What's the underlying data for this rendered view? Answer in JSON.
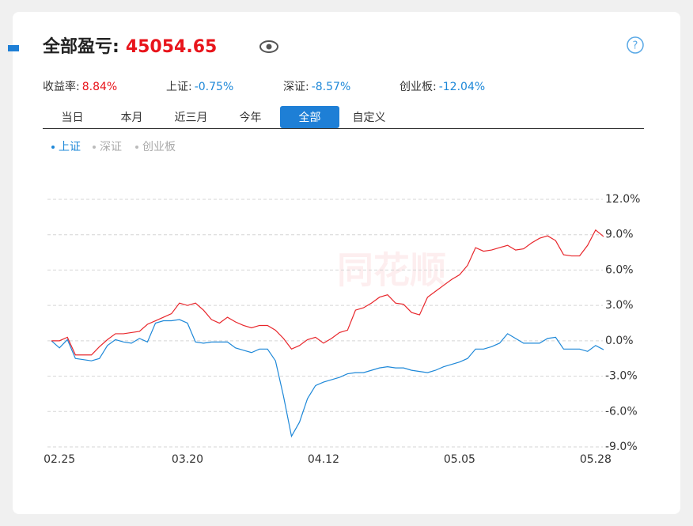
{
  "header": {
    "title": "全部盈亏:",
    "value": "45054.65"
  },
  "stats": [
    {
      "label": "收益率:",
      "value": "8.84%",
      "color": "#e8141b"
    },
    {
      "label": "上证:",
      "value": "-0.75%",
      "color": "#1e88d8"
    },
    {
      "label": "深证:",
      "value": "-8.57%",
      "color": "#1e88d8"
    },
    {
      "label": "创业板:",
      "value": "-12.04%",
      "color": "#1e88d8"
    }
  ],
  "tabs": [
    "当日",
    "本月",
    "近三月",
    "今年",
    "全部",
    "自定义"
  ],
  "active_tab": 4,
  "benchmark_toggles": [
    "深证",
    "创业板"
  ],
  "watermark": "同花顺",
  "chart_data": {
    "type": "line",
    "categories": [
      null,
      "02.25",
      null,
      null,
      null,
      null,
      null,
      null,
      null,
      null,
      null,
      null,
      null,
      null,
      null,
      null,
      null,
      "03.20",
      null,
      null,
      null,
      null,
      null,
      null,
      null,
      null,
      null,
      null,
      null,
      null,
      null,
      null,
      null,
      null,
      "04.12",
      null,
      null,
      null,
      null,
      null,
      null,
      null,
      null,
      null,
      null,
      null,
      null,
      null,
      null,
      null,
      null,
      "05.05",
      null,
      null,
      null,
      null,
      null,
      null,
      null,
      null,
      null,
      null,
      null,
      null,
      null,
      null,
      null,
      null,
      "05.28",
      null
    ],
    "series": [
      {
        "color": "#e8262b",
        "values": [
          0,
          0,
          0.3,
          -1.2,
          -1.2,
          -1.2,
          -0.5,
          0.1,
          0.6,
          0.6,
          0.7,
          0.8,
          1.4,
          1.7,
          2.0,
          2.3,
          3.2,
          3.0,
          3.2,
          2.6,
          1.8,
          1.5,
          2.0,
          1.6,
          1.3,
          1.1,
          1.3,
          1.3,
          0.9,
          0.2,
          -0.7,
          -0.4,
          0.1,
          0.3,
          -0.2,
          0.2,
          0.7,
          0.9,
          2.6,
          2.8,
          3.2,
          3.7,
          3.9,
          3.2,
          3.1,
          2.4,
          2.2,
          3.7,
          4.2,
          4.7,
          5.2,
          5.6,
          6.4,
          7.9,
          7.6,
          7.7,
          7.9,
          8.1,
          7.7,
          7.8,
          8.3,
          8.7,
          8.9,
          8.5,
          7.3,
          7.2,
          7.2,
          8.1,
          9.4,
          8.84
        ]
      },
      {
        "name": "上证",
        "color": "#1e88d8",
        "values": [
          0,
          -0.6,
          0.1,
          -1.5,
          -1.6,
          -1.7,
          -1.5,
          -0.4,
          0.1,
          -0.1,
          -0.2,
          0.2,
          -0.1,
          1.5,
          1.7,
          1.7,
          1.8,
          1.5,
          -0.1,
          -0.2,
          -0.1,
          -0.1,
          -0.1,
          -0.6,
          -0.8,
          -1.0,
          -0.7,
          -0.7,
          -1.7,
          -4.7,
          -8.1,
          -6.9,
          -4.9,
          -3.8,
          -3.5,
          -3.3,
          -3.1,
          -2.8,
          -2.7,
          -2.7,
          -2.5,
          -2.3,
          -2.2,
          -2.3,
          -2.3,
          -2.5,
          -2.6,
          -2.7,
          -2.5,
          -2.2,
          -2.0,
          -1.8,
          -1.5,
          -0.7,
          -0.7,
          -0.5,
          -0.2,
          0.6,
          0.2,
          -0.2,
          -0.2,
          -0.2,
          0.2,
          0.3,
          -0.7,
          -0.7,
          -0.7,
          -0.9,
          -0.4,
          -0.75
        ]
      }
    ],
    "ylim": [
      -9,
      12
    ],
    "yticks": [
      {
        "value": 12,
        "label": "12.0%"
      },
      {
        "value": 9,
        "label": "9.0%"
      },
      {
        "value": 6,
        "label": "6.0%"
      },
      {
        "value": 3,
        "label": "3.0%"
      },
      {
        "value": 0,
        "label": "0.0%"
      },
      {
        "value": -3,
        "label": "-3.0%"
      },
      {
        "value": -6,
        "label": "-6.0%"
      },
      {
        "value": -9,
        "label": "-9.0%"
      }
    ],
    "grid": true
  }
}
